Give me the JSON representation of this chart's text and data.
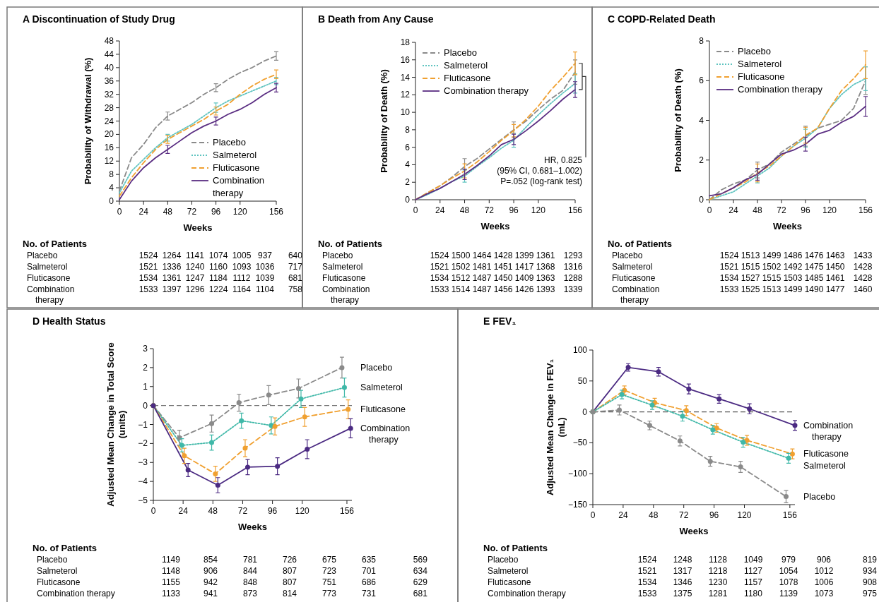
{
  "chart_data": [
    {
      "type": "line",
      "title": "A Discontinuation of Study Drug",
      "xlabel": "Weeks",
      "ylabel": "Probability of Withdrawal (%)",
      "x": [
        0,
        12,
        24,
        36,
        48,
        60,
        72,
        84,
        96,
        108,
        120,
        132,
        144,
        156
      ],
      "xlim": [
        0,
        156
      ],
      "xticks": [
        0,
        24,
        48,
        72,
        96,
        120,
        156
      ],
      "ylim": [
        0,
        48
      ],
      "yticks": [
        0,
        4,
        8,
        12,
        16,
        20,
        24,
        28,
        32,
        36,
        40,
        44,
        48
      ],
      "legend": "bottom right",
      "series": [
        {
          "name": "Placebo",
          "color": "#8a8a8a",
          "line_style": "dashed",
          "values": [
            3,
            13,
            17,
            22,
            25.5,
            27.5,
            29.5,
            32,
            34,
            36.5,
            38.5,
            40,
            42,
            43.5
          ],
          "errors": [
            null,
            null,
            null,
            null,
            1.2,
            null,
            null,
            null,
            1.2,
            null,
            null,
            null,
            null,
            1.3
          ]
        },
        {
          "name": "Salmeterol",
          "color": "#5fc4c0",
          "line_style": "dotted",
          "values": [
            2.5,
            9,
            12.5,
            16,
            19,
            21,
            23,
            25.5,
            28,
            30,
            31.5,
            33,
            34.5,
            36
          ],
          "errors": [
            null,
            null,
            null,
            null,
            1,
            null,
            null,
            null,
            1.4,
            null,
            null,
            null,
            null,
            1.1
          ]
        },
        {
          "name": "Fluticasone",
          "color": "#f0a030",
          "line_style": "dashed",
          "values": [
            1.5,
            7,
            11.5,
            15.5,
            18.5,
            20.5,
            22.5,
            24.5,
            27,
            29,
            32,
            34.5,
            36.5,
            38
          ],
          "errors": [
            null,
            null,
            null,
            null,
            1.2,
            null,
            null,
            null,
            1.2,
            null,
            null,
            null,
            null,
            1.3
          ]
        },
        {
          "name": "Combination therapy",
          "color": "#5a2d82",
          "line_style": "solid",
          "values": [
            0.5,
            6,
            10,
            13,
            15.5,
            18,
            20.5,
            22.5,
            24,
            26,
            27.5,
            29.5,
            32,
            34
          ],
          "errors": [
            null,
            null,
            null,
            null,
            1.2,
            null,
            null,
            null,
            1.2,
            null,
            null,
            null,
            null,
            1.3
          ]
        }
      ],
      "annotations": [
        "No. of Patients",
        "Placebo 1524 1264 1141 1074 1005 937 640",
        "Salmeterol 1521 1336 1240 1160 1093 1036 717",
        "Fluticasone 1534 1361 1247 1184 1112 1039 681",
        "Combination therapy 1533 1397 1296 1224 1164 1104 758"
      ]
    },
    {
      "type": "line",
      "title": "B Death from Any Cause",
      "xlabel": "Weeks",
      "ylabel": "Probability of Death (%)",
      "x": [
        0,
        12,
        24,
        36,
        48,
        60,
        72,
        84,
        96,
        108,
        120,
        132,
        144,
        156
      ],
      "xlim": [
        0,
        156
      ],
      "xticks": [
        0,
        24,
        48,
        72,
        96,
        120,
        156
      ],
      "ylim": [
        0,
        18
      ],
      "yticks": [
        0,
        2,
        4,
        6,
        8,
        10,
        12,
        14,
        16,
        18
      ],
      "legend": "top left",
      "series": [
        {
          "name": "Placebo",
          "color": "#8a8a8a",
          "line_style": "dashed",
          "values": [
            0,
            0.8,
            1.6,
            2.6,
            3.8,
            4.7,
            5.8,
            6.9,
            8,
            9,
            10.3,
            11.5,
            12.5,
            14.6
          ],
          "errors": [
            null,
            null,
            null,
            null,
            0.9,
            null,
            null,
            null,
            0.9,
            null,
            null,
            null,
            null,
            1.4
          ]
        },
        {
          "name": "Salmeterol",
          "color": "#5fc4c0",
          "line_style": "dotted",
          "values": [
            0,
            0.6,
            1.3,
            2.1,
            2.7,
            3.8,
            4.8,
            5.9,
            6.8,
            8.3,
            9.7,
            11,
            12.2,
            13.3
          ],
          "errors": [
            null,
            null,
            null,
            null,
            0.7,
            null,
            null,
            null,
            0.8,
            null,
            null,
            null,
            null,
            1.1
          ]
        },
        {
          "name": "Fluticasone",
          "color": "#f0a030",
          "line_style": "dashed",
          "values": [
            0,
            0.8,
            1.6,
            2.5,
            3.3,
            4.3,
            5.5,
            6.8,
            7.9,
            9.2,
            10.7,
            12.5,
            14,
            15.6
          ],
          "errors": [
            null,
            null,
            null,
            null,
            0.8,
            null,
            null,
            null,
            0.7,
            null,
            null,
            null,
            null,
            1.3
          ]
        },
        {
          "name": "Combination therapy",
          "color": "#5a2d82",
          "line_style": "solid",
          "values": [
            0,
            0.7,
            1.3,
            2.1,
            2.9,
            3.9,
            5,
            6.3,
            6.9,
            7.9,
            9,
            10.2,
            11.5,
            12.6
          ],
          "errors": [
            null,
            null,
            null,
            null,
            0.6,
            null,
            null,
            null,
            0.6,
            null,
            null,
            null,
            null,
            0.9
          ]
        }
      ],
      "annotations": [
        "HR, 0.825\n(95% CI, 0.681–1.002)\nP=.052 (log-rank test)",
        "No. of Patients",
        "Placebo 1524 1500 1464 1428 1399 1361 1293",
        "Salmeterol 1521 1502 1481 1451 1417 1368 1316",
        "Fluticasone 1534 1512 1487 1450 1409 1363 1288",
        "Combination therapy 1533 1514 1487 1456 1426 1393 1339"
      ]
    },
    {
      "type": "line",
      "title": "C COPD-Related Death",
      "xlabel": "Weeks",
      "ylabel": "Probability of Death (%)",
      "x": [
        0,
        12,
        24,
        36,
        48,
        60,
        72,
        84,
        96,
        108,
        120,
        132,
        144,
        156
      ],
      "xlim": [
        0,
        156
      ],
      "xticks": [
        0,
        24,
        48,
        72,
        96,
        120,
        156
      ],
      "ylim": [
        0,
        8
      ],
      "yticks": [
        0,
        2,
        4,
        6,
        8
      ],
      "legend": "top left",
      "series": [
        {
          "name": "Placebo",
          "color": "#8a8a8a",
          "line_style": "dashed",
          "values": [
            0,
            0.5,
            0.8,
            1,
            1.5,
            1.8,
            2.4,
            2.8,
            3.2,
            3.6,
            3.8,
            4,
            4.6,
            6
          ],
          "errors": [
            null,
            null,
            null,
            null,
            0.4,
            null,
            null,
            null,
            0.5,
            null,
            null,
            null,
            null,
            0.7
          ]
        },
        {
          "name": "Salmeterol",
          "color": "#5fc4c0",
          "line_style": "dotted",
          "values": [
            0,
            0.2,
            0.4,
            0.8,
            1.2,
            1.6,
            2.2,
            2.7,
            3.1,
            3.6,
            4.6,
            5.3,
            5.8,
            6.1
          ],
          "errors": [
            null,
            null,
            null,
            null,
            0.35,
            null,
            null,
            null,
            0.45,
            null,
            null,
            null,
            null,
            0.6
          ]
        },
        {
          "name": "Fluticasone",
          "color": "#f0a030",
          "line_style": "dashed",
          "values": [
            0,
            0.3,
            0.6,
            0.9,
            1.35,
            1.7,
            2.2,
            2.7,
            3.25,
            3.6,
            4.6,
            5.5,
            6.1,
            6.8
          ],
          "errors": [
            null,
            null,
            null,
            null,
            0.45,
            null,
            null,
            null,
            0.4,
            null,
            null,
            null,
            null,
            0.7
          ]
        },
        {
          "name": "Combination therapy",
          "color": "#5a2d82",
          "line_style": "solid",
          "values": [
            0.2,
            0.3,
            0.6,
            1,
            1.28,
            1.8,
            2.3,
            2.5,
            2.8,
            3.3,
            3.5,
            3.9,
            4.2,
            4.7
          ],
          "errors": [
            null,
            null,
            null,
            null,
            0.3,
            null,
            null,
            null,
            0.35,
            null,
            null,
            null,
            null,
            0.5
          ]
        }
      ],
      "annotations": [
        "No. of Patients",
        "Placebo 1524 1513 1499 1486 1476 1463 1433",
        "Salmeterol 1521 1515 1502 1492 1475 1450 1428",
        "Fluticasone 1534 1527 1515 1503 1485 1461 1428",
        "Combination therapy 1533 1525 1513 1499 1490 1477 1460"
      ]
    },
    {
      "type": "line",
      "title": "D Health Status",
      "xlabel": "Weeks",
      "ylabel": "Adjusted Mean Change in Total Score\n(units)",
      "xlim": [
        0,
        160
      ],
      "xticks": [
        0,
        24,
        48,
        72,
        96,
        120,
        156
      ],
      "ylim": [
        -5,
        3
      ],
      "yticks": [
        -5,
        -4,
        -3,
        -2,
        -1,
        0,
        1,
        2,
        3
      ],
      "legend": false,
      "marker": "circle",
      "ref_lines": [
        {
          "axis": "y",
          "value": 0,
          "line_style": "dashed",
          "color": "#777777"
        }
      ],
      "series": [
        {
          "name": "Placebo",
          "color": "#8a8a8a",
          "line_style": "dashed",
          "x": [
            0,
            21,
            47,
            69,
            93,
            117,
            152
          ],
          "values": [
            0,
            -1.7,
            -0.95,
            0.15,
            0.55,
            0.9,
            2
          ],
          "errors": [
            null,
            0.4,
            0.45,
            0.45,
            0.5,
            0.5,
            0.55
          ]
        },
        {
          "name": "Salmeterol",
          "color": "#3fb8a8",
          "line_style": "dotted",
          "x": [
            0,
            23,
            47,
            71,
            95,
            119,
            154
          ],
          "values": [
            0,
            -2.1,
            -1.95,
            -0.8,
            -1.05,
            0.35,
            0.95
          ],
          "errors": [
            null,
            0.35,
            0.4,
            0.4,
            0.45,
            0.45,
            0.5
          ]
        },
        {
          "name": "Fluticasone",
          "color": "#f0a030",
          "line_style": "dashed",
          "x": [
            0,
            25,
            50,
            74,
            98,
            122,
            157
          ],
          "values": [
            0,
            -2.65,
            -3.6,
            -2.25,
            -1.1,
            -0.6,
            -0.2
          ],
          "errors": [
            null,
            0.4,
            0.4,
            0.45,
            0.45,
            0.5,
            0.5
          ]
        },
        {
          "name": "Combination therapy",
          "color": "#4b2a82",
          "line_style": "solid",
          "x": [
            0,
            28,
            52,
            76,
            100,
            124,
            159
          ],
          "values": [
            0,
            -3.4,
            -4.2,
            -3.25,
            -3.2,
            -2.3,
            -1.2
          ],
          "errors": [
            null,
            0.35,
            0.4,
            0.4,
            0.45,
            0.5,
            0.5
          ]
        }
      ],
      "annotations": [
        "No. of Patients",
        "Placebo 1149 854 781 726 675 635 569",
        "Salmeterol 1148 906 844 807 723 701 634",
        "Fluticasone 1155 942 848 807 751 686 629",
        "Combination therapy 1133 941 873 814 773 731 681"
      ]
    },
    {
      "type": "line",
      "title": "E FEV₁",
      "xlabel": "Weeks",
      "ylabel": "Adjusted Mean Change in FEV₁\n(mL)",
      "xlim": [
        0,
        160
      ],
      "xticks": [
        0,
        24,
        48,
        72,
        96,
        120,
        156
      ],
      "ylim": [
        -150,
        100
      ],
      "yticks": [
        -150,
        -100,
        -50,
        0,
        50,
        100
      ],
      "legend": false,
      "marker": "circle",
      "ref_lines": [
        {
          "axis": "y",
          "value": 0,
          "line_style": "dashed",
          "color": "#555555"
        }
      ],
      "series": [
        {
          "name": "Combination therapy",
          "color": "#4b2a82",
          "line_style": "solid",
          "x": [
            0,
            28,
            52,
            76,
            100,
            124,
            160
          ],
          "values": [
            0,
            72,
            65,
            37,
            21,
            5,
            -22
          ],
          "errors": [
            null,
            6,
            7,
            8,
            7,
            8,
            8
          ]
        },
        {
          "name": "Fluticasone",
          "color": "#f0a030",
          "line_style": "dashed",
          "x": [
            0,
            25,
            49,
            74,
            98,
            122,
            158
          ],
          "values": [
            0,
            35,
            15,
            2,
            -26,
            -46,
            -68
          ],
          "errors": [
            null,
            7,
            7,
            8,
            7,
            8,
            8
          ]
        },
        {
          "name": "Salmeterol",
          "color": "#3fb8a8",
          "line_style": "dotted",
          "x": [
            0,
            23,
            47,
            71,
            95,
            119,
            155
          ],
          "values": [
            0,
            28,
            11,
            -7,
            -29,
            -49,
            -75
          ],
          "errors": [
            null,
            7,
            7,
            8,
            7,
            8,
            8
          ]
        },
        {
          "name": "Placebo",
          "color": "#8a8a8a",
          "line_style": "dashed",
          "x": [
            0,
            21,
            45,
            69,
            93,
            117,
            153
          ],
          "values": [
            0,
            3,
            -22,
            -47,
            -80,
            -89,
            -137
          ],
          "errors": [
            null,
            8,
            7,
            8,
            8,
            9,
            10
          ]
        }
      ],
      "annotations": [
        "No. of Patients",
        "Placebo 1524 1248 1128 1049 979 906 819",
        "Salmeterol 1521 1317 1218 1127 1054 1012 934",
        "Fluticasone 1534 1346 1230 1157 1078 1006 908",
        "Combination therapy 1533 1375 1281 1180 1139 1073 975"
      ]
    }
  ]
}
